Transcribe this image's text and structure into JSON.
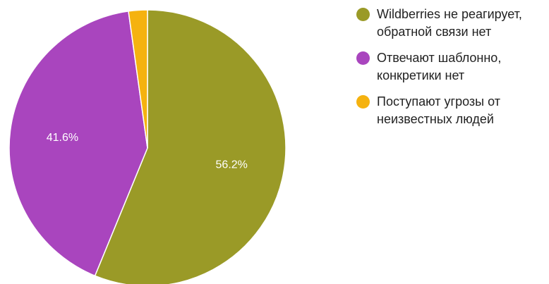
{
  "chart_data": {
    "type": "pie",
    "title": "",
    "slices": [
      {
        "label": "Wildberries не реагирует,\nобратной связи нет",
        "value": 56.2,
        "display": "56.2%",
        "color": "#9a9a27"
      },
      {
        "label": "Отвечают шаблонно,\nконкретики нет",
        "value": 41.6,
        "display": "41.6%",
        "color": "#a945be"
      },
      {
        "label": "Поступают угрозы от\nнеизвестных людей",
        "value": 2.2,
        "display": "",
        "color": "#f5b20f"
      }
    ],
    "legend_position": "right"
  }
}
